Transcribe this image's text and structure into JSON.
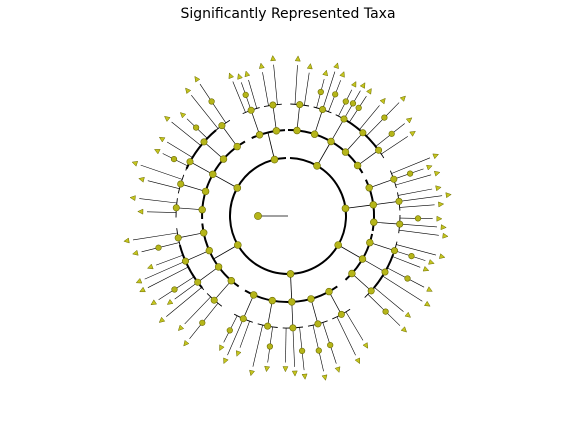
{
  "figure": {
    "title": "Significantly Represented Taxa"
  },
  "colors": {
    "background": "#ffffff",
    "branch": "#000000",
    "node_fill": "#b5b519",
    "node_stroke": "#6b6b00",
    "tip_fill": "#c4c41e"
  },
  "tree": {
    "type": "circular-cladogram",
    "sectors": [
      {
        "start": -90,
        "end": -30,
        "bold_arcs": [
          [
            -60,
            -35
          ]
        ]
      },
      {
        "start": -25,
        "end": 10
      },
      {
        "start": 12,
        "end": 48,
        "bold_arcs": [
          [
            20,
            40
          ]
        ]
      },
      {
        "start": 55,
        "end": 120
      },
      {
        "start": 125,
        "end": 175,
        "bold_arcs": [
          [
            140,
            165
          ]
        ]
      },
      {
        "start": 178,
        "end": 240,
        "bold_arcs": [
          [
            205,
            230
          ]
        ]
      },
      {
        "start": 245,
        "end": 268
      }
    ]
  }
}
